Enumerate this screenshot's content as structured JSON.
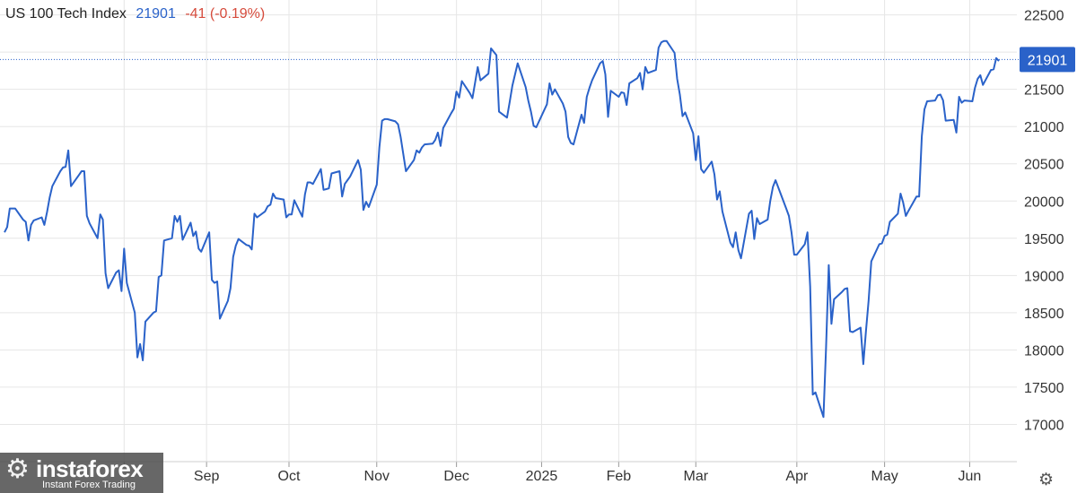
{
  "header": {
    "title": "US 100 Tech Index",
    "last": "21901",
    "change": "-41 (-0.19%)"
  },
  "price_tag": "21901",
  "watermark": {
    "name": "instaforex",
    "tagline": "Instant Forex Trading"
  },
  "icons": {
    "settings": "gear-icon",
    "logo": "gear-icon"
  },
  "colors": {
    "line": "#2a62c9",
    "negative": "#d64b3c",
    "grid": "#e6e6e6"
  },
  "chart_data": {
    "type": "line",
    "title": "",
    "series": [
      {
        "name": "US 100 Tech Index",
        "points": [
          [
            "2024-07-01",
            19580
          ],
          [
            "2024-07-02",
            19650
          ],
          [
            "2024-07-03",
            19900
          ],
          [
            "2024-07-05",
            19900
          ],
          [
            "2024-07-08",
            19750
          ],
          [
            "2024-07-09",
            19720
          ],
          [
            "2024-07-10",
            19470
          ],
          [
            "2024-07-11",
            19680
          ],
          [
            "2024-07-12",
            19740
          ],
          [
            "2024-07-15",
            19780
          ],
          [
            "2024-07-16",
            19680
          ],
          [
            "2024-07-17",
            19850
          ],
          [
            "2024-07-18",
            20050
          ],
          [
            "2024-07-19",
            20200
          ],
          [
            "2024-07-22",
            20400
          ],
          [
            "2024-07-23",
            20450
          ],
          [
            "2024-07-24",
            20460
          ],
          [
            "2024-07-25",
            20680
          ],
          [
            "2024-07-26",
            20200
          ],
          [
            "2024-07-29",
            20350
          ],
          [
            "2024-07-30",
            20400
          ],
          [
            "2024-07-31",
            20400
          ],
          [
            "2024-08-01",
            19800
          ],
          [
            "2024-08-02",
            19700
          ],
          [
            "2024-08-05",
            19500
          ],
          [
            "2024-08-06",
            19820
          ],
          [
            "2024-08-07",
            19750
          ],
          [
            "2024-08-08",
            19030
          ],
          [
            "2024-08-09",
            18830
          ],
          [
            "2024-08-12",
            19040
          ],
          [
            "2024-08-13",
            19070
          ],
          [
            "2024-08-14",
            18790
          ],
          [
            "2024-08-15",
            19360
          ],
          [
            "2024-08-16",
            18900
          ],
          [
            "2024-08-19",
            18500
          ],
          [
            "2024-08-20",
            17900
          ],
          [
            "2024-08-21",
            18080
          ],
          [
            "2024-08-22",
            17860
          ],
          [
            "2024-08-23",
            18380
          ],
          [
            "2024-08-26",
            18500
          ],
          [
            "2024-08-27",
            18520
          ],
          [
            "2024-08-28",
            18980
          ],
          [
            "2024-08-29",
            19000
          ],
          [
            "2024-08-30",
            19470
          ],
          [
            "2024-09-02",
            19500
          ],
          [
            "2024-09-03",
            19800
          ],
          [
            "2024-09-04",
            19720
          ],
          [
            "2024-09-05",
            19800
          ],
          [
            "2024-09-06",
            19480
          ],
          [
            "2024-09-09",
            19710
          ],
          [
            "2024-09-10",
            19530
          ],
          [
            "2024-09-11",
            19590
          ],
          [
            "2024-09-12",
            19360
          ],
          [
            "2024-09-13",
            19320
          ],
          [
            "2024-09-16",
            19580
          ],
          [
            "2024-09-17",
            18940
          ],
          [
            "2024-09-18",
            18900
          ],
          [
            "2024-09-19",
            18920
          ],
          [
            "2024-09-20",
            18420
          ],
          [
            "2024-09-23",
            18660
          ],
          [
            "2024-09-24",
            18830
          ],
          [
            "2024-09-25",
            19250
          ],
          [
            "2024-09-26",
            19400
          ],
          [
            "2024-09-27",
            19490
          ],
          [
            "2024-09-30",
            19410
          ],
          [
            "2024-10-01",
            19400
          ],
          [
            "2024-10-02",
            19350
          ],
          [
            "2024-10-03",
            19830
          ],
          [
            "2024-10-04",
            19780
          ],
          [
            "2024-10-07",
            19860
          ],
          [
            "2024-10-08",
            19930
          ],
          [
            "2024-10-09",
            19950
          ],
          [
            "2024-10-10",
            20100
          ],
          [
            "2024-10-11",
            20040
          ],
          [
            "2024-10-14",
            20020
          ],
          [
            "2024-10-15",
            19780
          ],
          [
            "2024-10-16",
            19820
          ],
          [
            "2024-10-17",
            19820
          ],
          [
            "2024-10-18",
            20010
          ],
          [
            "2024-10-21",
            19790
          ],
          [
            "2024-10-22",
            20090
          ],
          [
            "2024-10-23",
            20250
          ],
          [
            "2024-10-24",
            20250
          ],
          [
            "2024-10-25",
            20230
          ],
          [
            "2024-10-28",
            20430
          ],
          [
            "2024-10-29",
            20150
          ],
          [
            "2024-10-30",
            20160
          ],
          [
            "2024-10-31",
            20170
          ],
          [
            "2024-11-01",
            20370
          ],
          [
            "2024-11-04",
            20400
          ],
          [
            "2024-11-05",
            20060
          ],
          [
            "2024-11-06",
            20230
          ],
          [
            "2024-11-07",
            20280
          ],
          [
            "2024-11-08",
            20330
          ],
          [
            "2024-11-11",
            20550
          ],
          [
            "2024-11-12",
            20420
          ],
          [
            "2024-11-13",
            19880
          ],
          [
            "2024-11-14",
            19990
          ],
          [
            "2024-11-15",
            19920
          ],
          [
            "2024-11-18",
            20220
          ],
          [
            "2024-11-19",
            20720
          ],
          [
            "2024-11-20",
            21080
          ],
          [
            "2024-11-21",
            21100
          ],
          [
            "2024-11-22",
            21100
          ],
          [
            "2024-11-25",
            21070
          ],
          [
            "2024-11-26",
            21030
          ],
          [
            "2024-11-27",
            20860
          ],
          [
            "2024-11-29",
            20400
          ],
          [
            "2024-12-02",
            20550
          ],
          [
            "2024-12-03",
            20680
          ],
          [
            "2024-12-04",
            20650
          ],
          [
            "2024-12-05",
            20720
          ],
          [
            "2024-12-06",
            20760
          ],
          [
            "2024-12-09",
            20770
          ],
          [
            "2024-12-10",
            20820
          ],
          [
            "2024-12-11",
            20920
          ],
          [
            "2024-12-12",
            20740
          ],
          [
            "2024-12-13",
            20980
          ],
          [
            "2024-12-16",
            21180
          ],
          [
            "2024-12-17",
            21240
          ],
          [
            "2024-12-18",
            21470
          ],
          [
            "2024-12-19",
            21390
          ],
          [
            "2024-12-20",
            21610
          ],
          [
            "2024-12-23",
            21450
          ],
          [
            "2024-12-24",
            21380
          ],
          [
            "2024-12-26",
            21800
          ],
          [
            "2024-12-27",
            21620
          ],
          [
            "2024-12-30",
            21710
          ],
          [
            "2024-12-31",
            22050
          ],
          [
            "2025-01-02",
            21960
          ],
          [
            "2025-01-03",
            21200
          ],
          [
            "2025-01-06",
            21120
          ],
          [
            "2025-01-07",
            21330
          ],
          [
            "2025-01-08",
            21550
          ],
          [
            "2025-01-10",
            21850
          ],
          [
            "2025-01-13",
            21530
          ],
          [
            "2025-01-14",
            21350
          ],
          [
            "2025-01-15",
            21200
          ],
          [
            "2025-01-16",
            21010
          ],
          [
            "2025-01-17",
            20990
          ],
          [
            "2025-01-21",
            21300
          ],
          [
            "2025-01-22",
            21580
          ],
          [
            "2025-01-23",
            21430
          ],
          [
            "2025-01-24",
            21500
          ],
          [
            "2025-01-27",
            21310
          ],
          [
            "2025-01-28",
            21200
          ],
          [
            "2025-01-29",
            20860
          ],
          [
            "2025-01-30",
            20780
          ],
          [
            "2025-01-31",
            20760
          ],
          [
            "2025-02-03",
            21160
          ],
          [
            "2025-02-04",
            21050
          ],
          [
            "2025-02-05",
            21400
          ],
          [
            "2025-02-06",
            21520
          ],
          [
            "2025-02-07",
            21620
          ],
          [
            "2025-02-10",
            21850
          ],
          [
            "2025-02-11",
            21880
          ],
          [
            "2025-02-12",
            21700
          ],
          [
            "2025-02-13",
            21130
          ],
          [
            "2025-02-14",
            21480
          ],
          [
            "2025-02-17",
            21400
          ],
          [
            "2025-02-18",
            21460
          ],
          [
            "2025-02-19",
            21450
          ],
          [
            "2025-02-20",
            21290
          ],
          [
            "2025-02-21",
            21580
          ],
          [
            "2025-02-24",
            21650
          ],
          [
            "2025-02-25",
            21720
          ],
          [
            "2025-02-26",
            21500
          ],
          [
            "2025-02-27",
            21800
          ],
          [
            "2025-02-28",
            21720
          ],
          [
            "2025-03-03",
            21760
          ],
          [
            "2025-03-04",
            22060
          ],
          [
            "2025-03-05",
            22130
          ],
          [
            "2025-03-06",
            22150
          ],
          [
            "2025-03-07",
            22150
          ],
          [
            "2025-03-10",
            21990
          ],
          [
            "2025-03-11",
            21640
          ],
          [
            "2025-03-12",
            21430
          ],
          [
            "2025-03-13",
            21140
          ],
          [
            "2025-03-14",
            21190
          ],
          [
            "2025-03-17",
            20910
          ],
          [
            "2025-03-18",
            20550
          ],
          [
            "2025-03-19",
            20870
          ],
          [
            "2025-03-20",
            20430
          ],
          [
            "2025-03-21",
            20380
          ],
          [
            "2025-03-24",
            20530
          ],
          [
            "2025-03-25",
            20360
          ],
          [
            "2025-03-26",
            20020
          ],
          [
            "2025-03-27",
            20130
          ],
          [
            "2025-03-28",
            19860
          ],
          [
            "2025-03-31",
            19440
          ],
          [
            "2025-04-01",
            19380
          ],
          [
            "2025-04-02",
            19580
          ],
          [
            "2025-04-03",
            19340
          ],
          [
            "2025-04-04",
            19230
          ],
          [
            "2025-04-07",
            19830
          ],
          [
            "2025-04-08",
            19870
          ],
          [
            "2025-04-09",
            19490
          ],
          [
            "2025-04-10",
            19770
          ],
          [
            "2025-04-11",
            19690
          ],
          [
            "2025-04-14",
            19750
          ],
          [
            "2025-04-15",
            20000
          ],
          [
            "2025-04-16",
            20190
          ],
          [
            "2025-04-17",
            20280
          ],
          [
            "2025-04-21",
            19900
          ],
          [
            "2025-04-22",
            19800
          ],
          [
            "2025-04-23",
            19580
          ],
          [
            "2025-04-24",
            19280
          ],
          [
            "2025-04-25",
            19280
          ],
          [
            "2025-04-28",
            19420
          ],
          [
            "2025-04-29",
            19580
          ],
          [
            "2025-04-30",
            18850
          ],
          [
            "2025-05-01",
            17400
          ],
          [
            "2025-05-02",
            17430
          ],
          [
            "2025-05-05",
            17100
          ],
          [
            "2025-05-06",
            18030
          ],
          [
            "2025-05-07",
            19140
          ],
          [
            "2025-05-08",
            18350
          ],
          [
            "2025-05-09",
            18680
          ],
          [
            "2025-05-12",
            18780
          ],
          [
            "2025-05-13",
            18820
          ],
          [
            "2025-05-14",
            18830
          ],
          [
            "2025-05-15",
            18250
          ],
          [
            "2025-05-16",
            18240
          ],
          [
            "2025-05-19",
            18300
          ],
          [
            "2025-05-20",
            17810
          ],
          [
            "2025-05-21",
            18260
          ],
          [
            "2025-05-22",
            18660
          ],
          [
            "2025-05-23",
            19190
          ],
          [
            "2025-05-26",
            19420
          ],
          [
            "2025-05-27",
            19430
          ],
          [
            "2025-05-28",
            19530
          ],
          [
            "2025-05-29",
            19550
          ],
          [
            "2025-05-30",
            19720
          ],
          [
            "2025-06-02",
            19830
          ],
          [
            "2025-06-03",
            20100
          ],
          [
            "2025-06-04",
            19980
          ],
          [
            "2025-06-05",
            19800
          ],
          [
            "2025-06-06",
            19870
          ],
          [
            "2025-06-09",
            20060
          ],
          [
            "2025-06-10",
            20060
          ],
          [
            "2025-06-11",
            20870
          ],
          [
            "2025-06-12",
            21230
          ],
          [
            "2025-06-13",
            21340
          ],
          [
            "2025-06-16",
            21350
          ],
          [
            "2025-06-17",
            21420
          ],
          [
            "2025-06-18",
            21430
          ],
          [
            "2025-06-19",
            21350
          ],
          [
            "2025-06-20",
            21080
          ],
          [
            "2025-06-23",
            21090
          ],
          [
            "2025-06-24",
            20920
          ],
          [
            "2025-06-25",
            21400
          ],
          [
            "2025-06-26",
            21320
          ],
          [
            "2025-06-27",
            21350
          ],
          [
            "2025-06-30",
            21340
          ],
          [
            "2025-07-01",
            21520
          ],
          [
            "2025-07-02",
            21640
          ],
          [
            "2025-07-03",
            21690
          ],
          [
            "2025-07-04",
            21560
          ],
          [
            "2025-07-07",
            21760
          ],
          [
            "2025-07-08",
            21770
          ],
          [
            "2025-07-09",
            21920
          ],
          [
            "2025-07-10",
            21880
          ]
        ]
      }
    ],
    "x_ticks": [
      {
        "date": "2024-08-15",
        "label": ""
      },
      {
        "date": "2024-09-15",
        "label": "Sep"
      },
      {
        "date": "2024-10-16",
        "label": "Oct"
      },
      {
        "date": "2024-11-18",
        "label": "Nov"
      },
      {
        "date": "2024-12-18",
        "label": "Dec"
      },
      {
        "date": "2025-01-19",
        "label": "2025"
      },
      {
        "date": "2025-02-17",
        "label": "Feb"
      },
      {
        "date": "2025-03-18",
        "label": "Mar"
      },
      {
        "date": "2025-04-25",
        "label": "Apr"
      },
      {
        "date": "2025-05-28",
        "label": "May"
      },
      {
        "date": "2025-06-29",
        "label": "Jun"
      }
    ],
    "y_ticks": [
      17000,
      17500,
      18000,
      18500,
      19000,
      19500,
      20000,
      20500,
      21000,
      21500,
      22000,
      22500
    ],
    "xlim": [
      "2024-07-01",
      "2025-07-10"
    ],
    "ylim": [
      16500,
      22700
    ],
    "last_value": 21901,
    "grid": true,
    "axis_position": "right"
  }
}
